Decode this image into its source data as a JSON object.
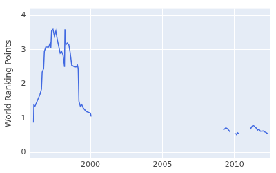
{
  "chart_data": {
    "type": "line",
    "y_label": "World Ranking Points",
    "color": "#4169e1",
    "grid": true,
    "x": [
      1996.05,
      1996.07,
      1996.15,
      1996.3,
      1996.5,
      1996.6,
      1996.65,
      1996.75,
      1996.8,
      1996.9,
      1997.1,
      1997.2,
      1997.25,
      1997.3,
      1997.4,
      1997.5,
      1997.6,
      1997.7,
      1997.8,
      1997.9,
      1998.0,
      1998.1,
      1998.2,
      1998.23,
      1998.3,
      1998.4,
      1998.5,
      1998.6,
      1998.7,
      1998.9,
      1999.0,
      1999.1,
      1999.15,
      1999.2,
      1999.3,
      1999.4,
      1999.5,
      1999.7,
      2000.0,
      2000.05,
      2005.0,
      2009.2,
      2009.3,
      2009.4,
      2009.5,
      2009.6,
      2009.7,
      2009.9,
      2010.0,
      2010.1,
      2010.15,
      2010.2,
      2010.3,
      2010.7,
      2011.1,
      2011.2,
      2011.3,
      2011.4,
      2011.5,
      2011.6,
      2011.7,
      2011.8,
      2012.0,
      2012.1,
      2012.2,
      2012.3
    ],
    "values": [
      0.87,
      1.38,
      1.35,
      1.5,
      1.7,
      1.85,
      2.35,
      2.45,
      2.95,
      3.08,
      3.08,
      3.2,
      3.05,
      3.55,
      3.6,
      3.4,
      3.55,
      3.3,
      3.1,
      2.9,
      2.95,
      2.85,
      2.5,
      3.6,
      3.15,
      3.2,
      3.15,
      2.9,
      2.55,
      2.5,
      2.5,
      2.55,
      2.45,
      1.5,
      1.35,
      1.4,
      1.3,
      1.2,
      1.15,
      1.05,
      null,
      0.68,
      0.68,
      0.72,
      0.7,
      0.65,
      0.6,
      null,
      0.55,
      0.55,
      0.52,
      0.58,
      0.55,
      null,
      0.68,
      0.75,
      0.8,
      0.75,
      0.72,
      0.65,
      0.68,
      0.62,
      0.63,
      0.6,
      0.58,
      0.55
    ],
    "xlim": [
      1995.8,
      2012.5
    ],
    "xticks": [
      2000,
      2005,
      2010
    ],
    "ylim": [
      -0.17,
      4.2
    ],
    "yticks": [
      0,
      1,
      2,
      3,
      4
    ]
  }
}
